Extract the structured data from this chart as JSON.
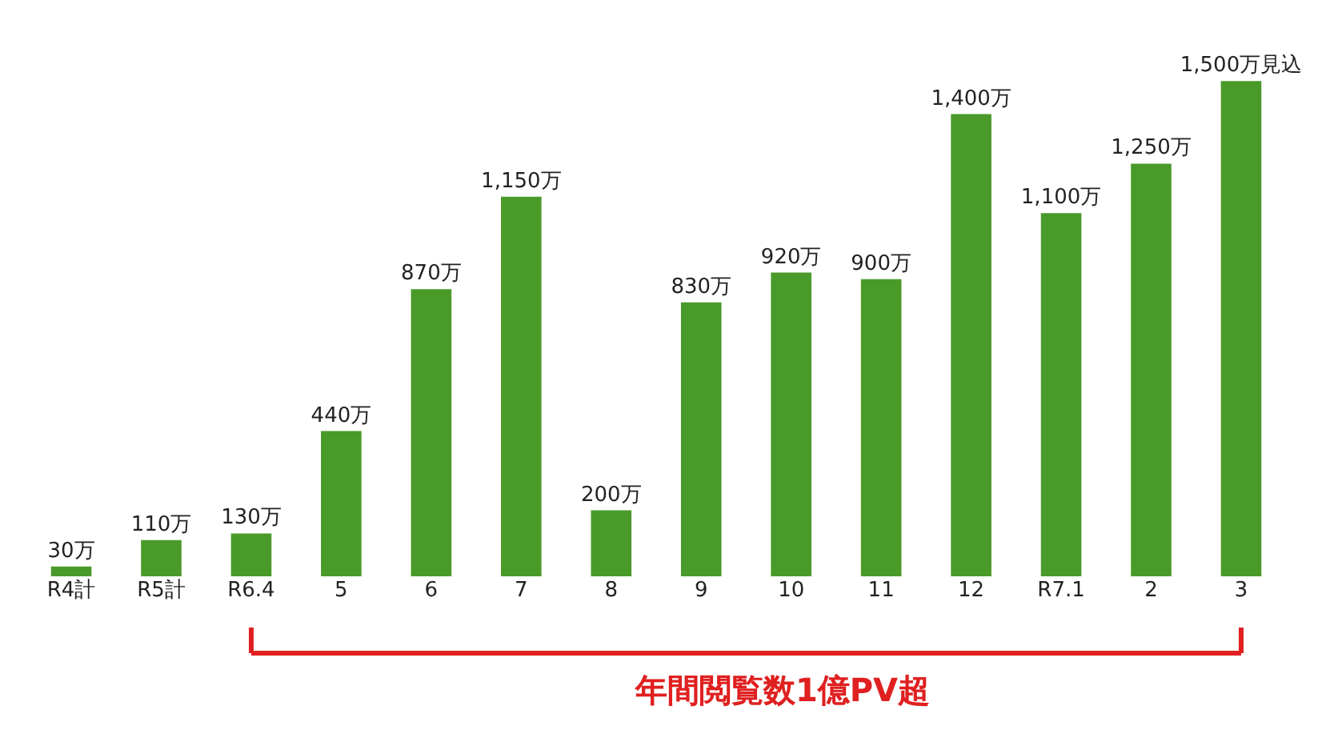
{
  "chart_data": {
    "type": "bar",
    "categories": [
      "R4計",
      "R5計",
      "R6.4",
      "5",
      "6",
      "7",
      "8",
      "9",
      "10",
      "11",
      "12",
      "R7.1",
      "2",
      "3"
    ],
    "values": [
      30,
      110,
      130,
      440,
      870,
      1150,
      200,
      830,
      920,
      900,
      1400,
      1100,
      1250,
      1500
    ],
    "value_labels": [
      "30万",
      "110万",
      "130万",
      "440万",
      "870万",
      "1,150万",
      "200万",
      "830万",
      "920万",
      "900万",
      "1,400万",
      "1,100万",
      "1,250万",
      "1,500万見込"
    ],
    "color": "#4a9a2a",
    "annotations": [
      "年間閲覧数1億PV超"
    ],
    "grid": false
  }
}
